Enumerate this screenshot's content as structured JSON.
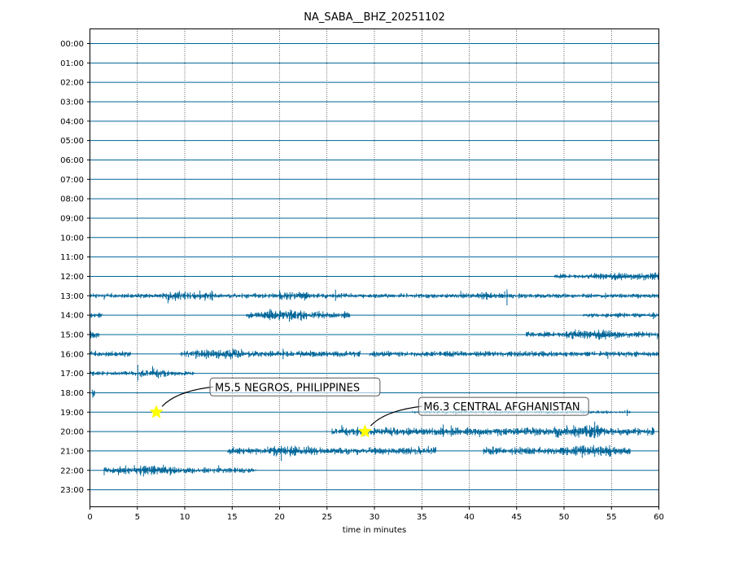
{
  "chart_data": {
    "type": "line",
    "title": "NA_SABA__BHZ_20251102",
    "xlabel": "time in minutes",
    "ylabel": "",
    "xlim": [
      0,
      60
    ],
    "x_ticks": [
      "0",
      "5",
      "10",
      "15",
      "20",
      "25",
      "30",
      "35",
      "40",
      "45",
      "50",
      "55",
      "60"
    ],
    "row_labels": [
      "00:00",
      "01:00",
      "02:00",
      "03:00",
      "04:00",
      "05:00",
      "06:00",
      "07:00",
      "08:00",
      "09:00",
      "10:00",
      "11:00",
      "12:00",
      "13:00",
      "14:00",
      "15:00",
      "16:00",
      "17:00",
      "18:00",
      "19:00",
      "20:00",
      "21:00",
      "22:00",
      "23:00"
    ],
    "grid": "vertical dotted",
    "trace_color": "#006699",
    "activity_segments": [
      {
        "row": 12,
        "start": 49,
        "end": 60,
        "amplitude": 0.3
      },
      {
        "row": 12,
        "start": 53,
        "end": 60,
        "amplitude": 0.45
      },
      {
        "row": 13,
        "start": 0,
        "end": 60,
        "amplitude": 0.3
      },
      {
        "row": 13,
        "start": 8,
        "end": 13,
        "amplitude": 0.55
      },
      {
        "row": 13,
        "start": 20,
        "end": 23,
        "amplitude": 0.6
      },
      {
        "row": 13,
        "start": 41,
        "end": 44,
        "amplitude": 0.5
      },
      {
        "row": 14,
        "start": 0,
        "end": 1.3,
        "amplitude": 0.3
      },
      {
        "row": 14,
        "start": 16.5,
        "end": 27.5,
        "amplitude": 0.45
      },
      {
        "row": 14,
        "start": 18.5,
        "end": 22.5,
        "amplitude": 0.7
      },
      {
        "row": 14,
        "start": 52,
        "end": 60,
        "amplitude": 0.3
      },
      {
        "row": 15,
        "start": 0,
        "end": 1,
        "amplitude": 0.6
      },
      {
        "row": 15,
        "start": 46,
        "end": 60,
        "amplitude": 0.35
      },
      {
        "row": 15,
        "start": 50,
        "end": 56,
        "amplitude": 0.6
      },
      {
        "row": 16,
        "start": 0,
        "end": 4.3,
        "amplitude": 0.35
      },
      {
        "row": 16,
        "start": 9.5,
        "end": 28.5,
        "amplitude": 0.4
      },
      {
        "row": 16,
        "start": 29.5,
        "end": 60,
        "amplitude": 0.35
      },
      {
        "row": 16,
        "start": 11,
        "end": 16,
        "amplitude": 0.6
      },
      {
        "row": 17,
        "start": 0,
        "end": 11,
        "amplitude": 0.3
      },
      {
        "row": 17,
        "start": 5,
        "end": 8,
        "amplitude": 0.55
      },
      {
        "row": 18,
        "start": 0.2,
        "end": 0.5,
        "amplitude": 0.6
      },
      {
        "row": 19,
        "start": 34,
        "end": 57,
        "amplitude": 0.2
      },
      {
        "row": 20,
        "start": 25.5,
        "end": 59.5,
        "amplitude": 0.5
      },
      {
        "row": 20,
        "start": 49,
        "end": 54,
        "amplitude": 0.75
      },
      {
        "row": 21,
        "start": 14.5,
        "end": 36.5,
        "amplitude": 0.45
      },
      {
        "row": 21,
        "start": 19,
        "end": 24,
        "amplitude": 0.65
      },
      {
        "row": 21,
        "start": 41.5,
        "end": 57,
        "amplitude": 0.5
      },
      {
        "row": 21,
        "start": 51,
        "end": 55,
        "amplitude": 0.75
      },
      {
        "row": 22,
        "start": 1.5,
        "end": 17.5,
        "amplitude": 0.35
      },
      {
        "row": 22,
        "start": 3,
        "end": 9,
        "amplitude": 0.6
      }
    ],
    "events": [
      {
        "label": "M5.5 NEGROS, PHILIPPINES",
        "row": 19,
        "minute": 7,
        "marker_color": "#ffff00"
      },
      {
        "label": "M6.3 CENTRAL AFGHANISTAN",
        "row": 20,
        "minute": 29,
        "marker_color": "#ffff00"
      }
    ]
  }
}
